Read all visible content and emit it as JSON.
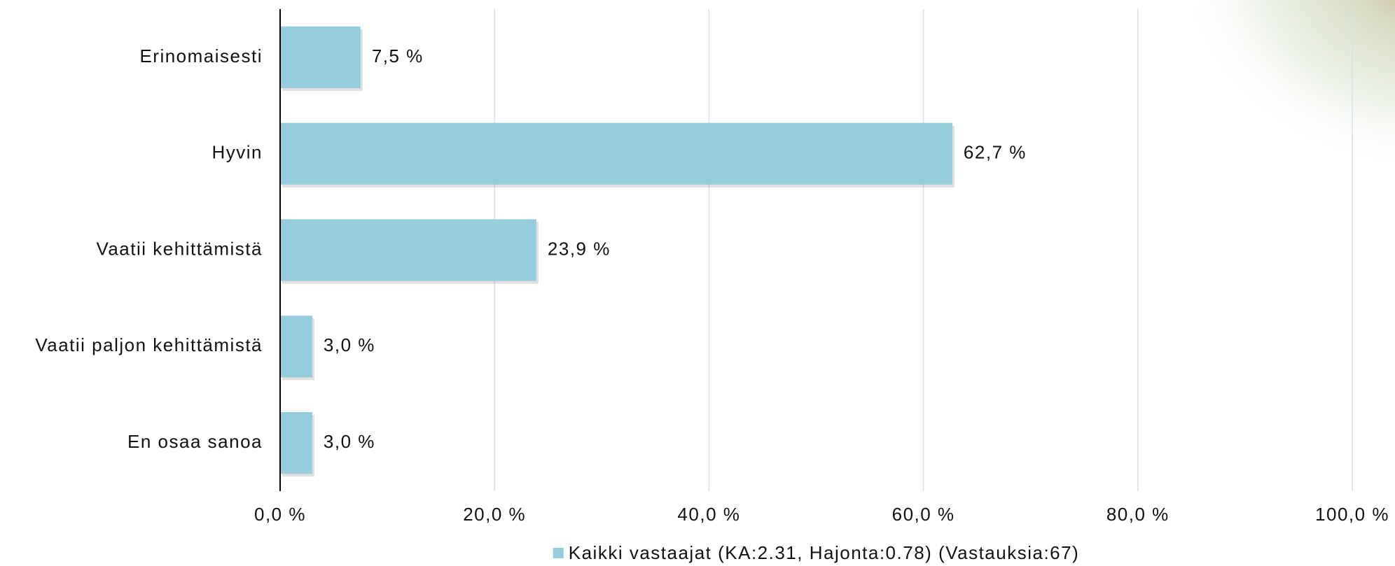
{
  "chart_data": {
    "type": "bar",
    "orientation": "horizontal",
    "categories": [
      "Erinomaisesti",
      "Hyvin",
      "Vaatii kehittämistä",
      "Vaatii paljon kehittämistä",
      "En osaa sanoa"
    ],
    "series": [
      {
        "name": "Kaikki vastaajat (KA:2.31, Hajonta:0.78) (Vastauksia:67)",
        "color": "#96cddc",
        "values": [
          7.5,
          62.7,
          23.9,
          3.0,
          3.0
        ],
        "value_labels": [
          "7,5 %",
          "62,7 %",
          "23,9 %",
          "3,0 %",
          "3,0 %"
        ]
      }
    ],
    "xlim": [
      0,
      100
    ],
    "xticks": [
      {
        "value": 0,
        "label": "0,0 %"
      },
      {
        "value": 20,
        "label": "20,0 %"
      },
      {
        "value": 40,
        "label": "40,0 %"
      },
      {
        "value": 60,
        "label": "60,0 %"
      },
      {
        "value": 80,
        "label": "80,0 %"
      },
      {
        "value": 100,
        "label": "100,0 %"
      }
    ],
    "grid": true,
    "legend": "bottom"
  }
}
